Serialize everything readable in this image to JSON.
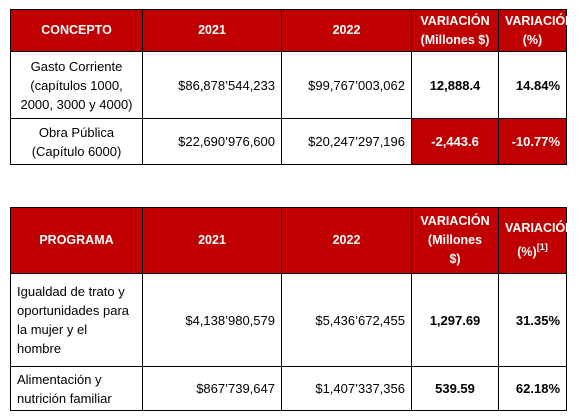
{
  "table1": {
    "headers": [
      "CONCEPTO",
      "2021",
      "2022",
      "VARIACIÓN",
      "(Millones $)",
      "VARIACIÓN",
      "(%)"
    ],
    "rows": [
      {
        "concept_lines": [
          "Gasto Corriente",
          "(capítulos 1000,",
          "2000, 3000 y 4000)"
        ],
        "y2021": "$86,878’544,233",
        "y2022": "$99,767’003,062",
        "var_millones": "12,888.4",
        "var_pct": "14.84%"
      },
      {
        "concept_lines": [
          "Obra Pública",
          "(Capítulo 6000)"
        ],
        "y2021": "$22,690’976,600",
        "y2022": "$20,247’297,196",
        "var_millones": "-2,443.6",
        "var_pct": "-10.77%"
      }
    ]
  },
  "table2": {
    "headers": [
      "PROGRAMA",
      "2021",
      "2022",
      "VARIACIÓN",
      "(Millones",
      "$)",
      "VARIACIÓN",
      "[1]",
      "(%)"
    ],
    "rows": [
      {
        "program_lines": [
          "Igualdad de trato y",
          "oportunidades para",
          "la mujer y el",
          "hombre"
        ],
        "y2021": "$4,138’980,579",
        "y2022": "$5,436’672,455",
        "var_millones": "1,297.69",
        "var_pct": "31.35%"
      },
      {
        "program_lines": [
          "Alimentación y",
          "nutrición familiar"
        ],
        "y2021": "$867’739,647",
        "y2022": "$1,407’337,356",
        "var_millones": "539.59",
        "var_pct": "62.18%"
      }
    ]
  },
  "colors": {
    "header_bg": "#c00000",
    "header_text": "#ffffff"
  }
}
